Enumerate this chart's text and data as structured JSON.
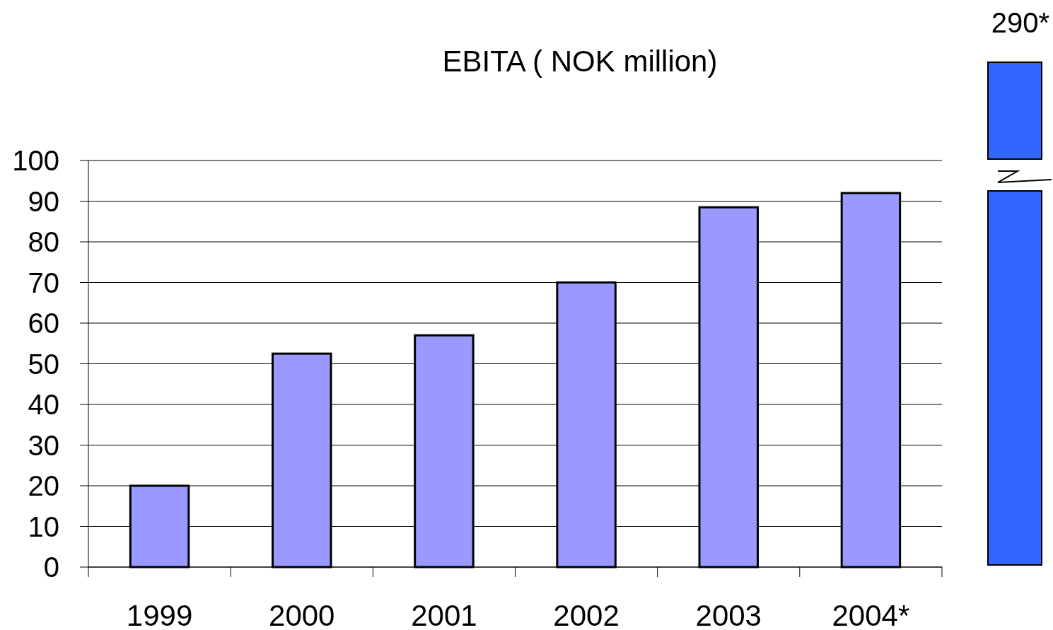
{
  "chart_data": {
    "type": "bar",
    "title": "EBITA   ( NOK million)",
    "categories": [
      "1999",
      "2000",
      "2001",
      "2002",
      "2003",
      "2004*"
    ],
    "values": [
      20,
      52.5,
      57,
      70,
      88.5,
      92
    ],
    "color": "#9999ff",
    "ylim": [
      0,
      100
    ],
    "yticks": [
      0,
      10,
      20,
      30,
      40,
      50,
      60,
      70,
      80,
      90,
      100
    ],
    "grid": "y",
    "annotations": [
      "290*"
    ]
  }
}
